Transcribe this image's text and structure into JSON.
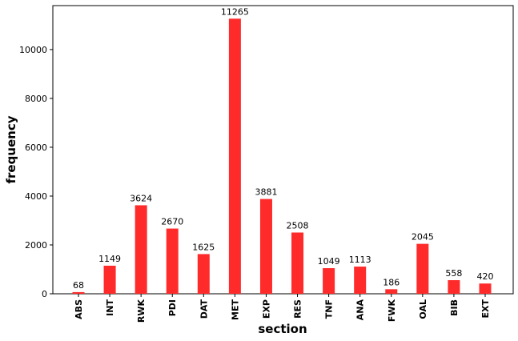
{
  "chart_data": {
    "type": "bar",
    "title": "",
    "xlabel": "section",
    "ylabel": "frequency",
    "categories": [
      "ABS",
      "INT",
      "RWK",
      "PDI",
      "DAT",
      "MET",
      "EXP",
      "RES",
      "TNF",
      "ANA",
      "FWK",
      "OAL",
      "BIB",
      "EXT"
    ],
    "values": [
      68,
      1149,
      3624,
      2670,
      1625,
      11265,
      3881,
      2508,
      1049,
      1113,
      186,
      2045,
      558,
      420
    ],
    "ylim": [
      0,
      11800
    ],
    "yticks": [
      0,
      2000,
      4000,
      6000,
      8000,
      10000
    ],
    "grid": false,
    "bar_color": "#ff2b2b",
    "data_labels": true
  }
}
